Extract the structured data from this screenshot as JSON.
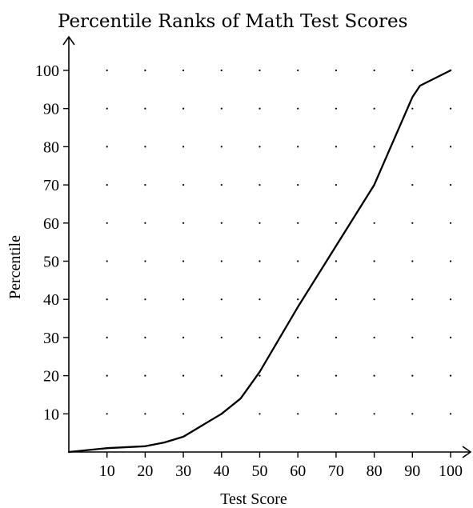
{
  "chart_data": {
    "type": "line",
    "title": "Percentile Ranks of Math Test Scores",
    "xlabel": "Test Score",
    "ylabel": "Percentile",
    "xlim": [
      0,
      100
    ],
    "ylim": [
      0,
      100
    ],
    "x_ticks": [
      10,
      20,
      30,
      40,
      50,
      60,
      70,
      80,
      90,
      100
    ],
    "y_ticks": [
      10,
      20,
      30,
      40,
      50,
      60,
      70,
      80,
      90,
      100
    ],
    "grid": "dotted",
    "legend": "none",
    "series": [
      {
        "x": [
          0,
          10,
          20,
          25,
          30,
          40,
          45,
          50,
          60,
          70,
          80,
          90,
          92,
          100
        ],
        "values": [
          0,
          1,
          1.5,
          2.5,
          4,
          10,
          14,
          21,
          38,
          54,
          70,
          93,
          96,
          100
        ]
      }
    ]
  }
}
